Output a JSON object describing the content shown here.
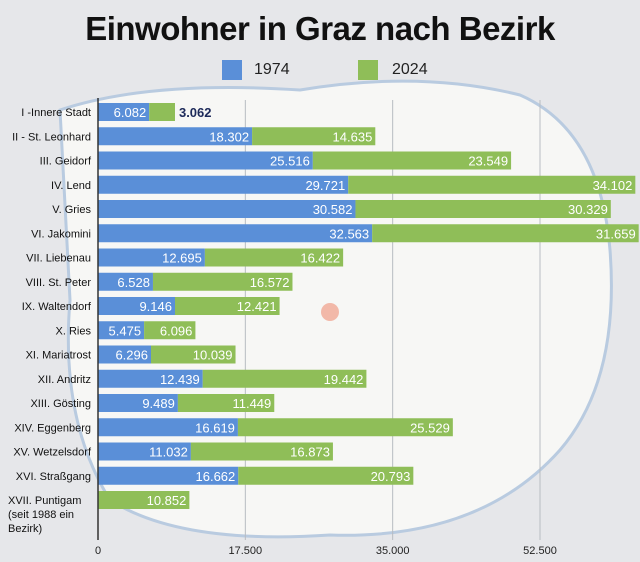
{
  "chart_data": {
    "type": "bar",
    "orientation": "horizontal",
    "stacked": true,
    "title": "Einwohner in Graz nach Bezirk",
    "categories": [
      "I -Innere Stadt",
      "II - St. Leonhard",
      "III. Geidorf",
      "IV. Lend",
      "V. Gries",
      "VI. Jakomini",
      "VII. Liebenau",
      "VIII. St. Peter",
      "IX. Waltendorf",
      "X. Ries",
      "XI. Mariatrost",
      "XII. Andritz",
      "XIII. Gösting",
      "XIV. Eggenberg",
      "XV. Wetzelsdorf",
      "XVI. Straßgang",
      "XVII. Puntigam (seit 1988 ein Bezirk)"
    ],
    "series": [
      {
        "name": "1974",
        "color": "#5a8fd8",
        "values": [
          6082,
          18302,
          25516,
          29721,
          30582,
          32563,
          12695,
          6528,
          9146,
          5475,
          6296,
          12439,
          9489,
          16619,
          11032,
          16662,
          null
        ],
        "labels": [
          "6.082",
          "18.302",
          "25.516",
          "29.721",
          "30.582",
          "32.563",
          "12.695",
          "6.528",
          "9.146",
          "5.475",
          "6.296",
          "12.439",
          "9.489",
          "16.619",
          "11.032",
          "16.662",
          ""
        ]
      },
      {
        "name": "2024",
        "color": "#8fbe58",
        "values": [
          3062,
          14635,
          23549,
          34102,
          30329,
          31659,
          16422,
          16572,
          12421,
          6096,
          10039,
          19442,
          11449,
          25529,
          16873,
          20793,
          10852
        ],
        "labels": [
          "3.062",
          "14.635",
          "23.549",
          "34.102",
          "30.329",
          "31.659",
          "16.422",
          "16.572",
          "12.421",
          "6.096",
          "10.039",
          "19.442",
          "11.449",
          "25.529",
          "16.873",
          "20.793",
          "10.852"
        ]
      }
    ],
    "xticks": [
      0,
      17500,
      35000,
      52500
    ],
    "xtick_labels": [
      "0",
      "17.500",
      "35.000",
      "52.500"
    ],
    "xlim": [
      0,
      64400
    ],
    "grid": "vertical",
    "legend": "top-center"
  }
}
